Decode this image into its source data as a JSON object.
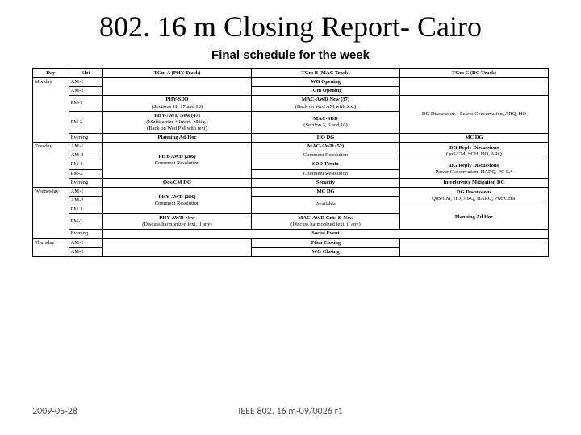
{
  "title": "802. 16 m Closing Report- Cairo",
  "subtitle": "Final schedule for the week",
  "headers": {
    "day": "Day",
    "slot": "Slot",
    "tga": "TGm A (PHY Track)",
    "tgb": "TGm B (MAC Track)",
    "tgc": "TGm C (DG Track)"
  },
  "mon": {
    "day": "Monday",
    "am1": "AM-1",
    "am2": "AM-2",
    "pm1": "PM-1",
    "pm2": "PM-2",
    "evening": "Evening",
    "wg_opening": "WG Opening",
    "tgm_opening": "TGm Opening",
    "phy_sdd_t": "PHY-SDD",
    "phy_sdd_s": "(Sections 11, 17 and 18)",
    "mac_awd_t": "MAC-AWD New (37)",
    "mac_awd_s": "(Back on Wed AM with text)",
    "phy_awd_t": "PHY-AWD New (47)",
    "phy_awd_s1": "(Multicarrier + Interf. Mitig.)",
    "phy_awd_s2": "(Back on Wed PM with text)",
    "mac_sdd_t": "MAC-SDD",
    "mac_sdd_s": "(Section 3, 6 and 10)",
    "dg_disc": "DG Discussions . Power Conservation, ARQ, HO",
    "plan_adhoc": "Planning Ad-Hoc",
    "ho_dg": "HO DG",
    "mc_dg": "MC DG"
  },
  "tue": {
    "day": "Tuesday",
    "am1": "AM-1",
    "am2": "AM-2",
    "pm1": "PM-1",
    "pm2": "PM-2",
    "evening": "Evening",
    "phy_awd_t": "PHY-AWD (286)",
    "phy_awd_s": "Comment Resolution",
    "mac_awd": "MAC-AWD (52)",
    "com_res": "Comment Resolution",
    "sdd_femto": "SDD-Femto",
    "com_res2": "Comment Resolution",
    "dg_reply1": "DG Reply Discussions",
    "dg_reply1_s": "QoS/CM, SCH, HO, ARQ",
    "dg_reply2": "DG Reply Discussions",
    "dg_reply2_s": "Power Conservation, HARQ, PC LA",
    "qos": "Qos/CM DG",
    "security": "Security",
    "interf": "Interference Mitigation DG"
  },
  "wed": {
    "day": "Wednesday",
    "am1": "AM-1",
    "am2": "AM-2",
    "pm1": "PM-1",
    "pm2": "PM-2",
    "evening": "Evening",
    "phy_awd_t": "PHY-AWD (286)",
    "phy_awd_s": "Comment Resolution",
    "mc_dg": "MC DG",
    "available": "Available",
    "dg_disc": "DG Discussions",
    "dg_disc_s": "QoS/CM, HO, ARQ, HARQ, Pwr Cons.",
    "plan_adhoc": "Planning Ad Hoc",
    "phy_awd_new_t": "PHY-AWD New",
    "phy_awd_new_s": "(Discuss harmonized text, if any)",
    "mac_awd_cnts": "MAC-AWD Cnts & New",
    "mac_awd_cnts_s": "(Discuss harmonized text, if any)",
    "social": "Social Event"
  },
  "thu": {
    "day": "Thursday",
    "am1": "AM-1",
    "am2": "AM-2",
    "tgm_closing": "TGm Closing",
    "wg_closing": "WG Closing"
  },
  "footer": {
    "date": "2009-05-28",
    "doc": "IEEE 802. 16 m-09/0026 r1"
  },
  "style": {
    "bg": "#ffffff",
    "fg": "#000000",
    "footer_color": "#555555",
    "title_fontsize": 36,
    "subtitle_fontsize": 15,
    "table_fontsize": 6.5
  }
}
